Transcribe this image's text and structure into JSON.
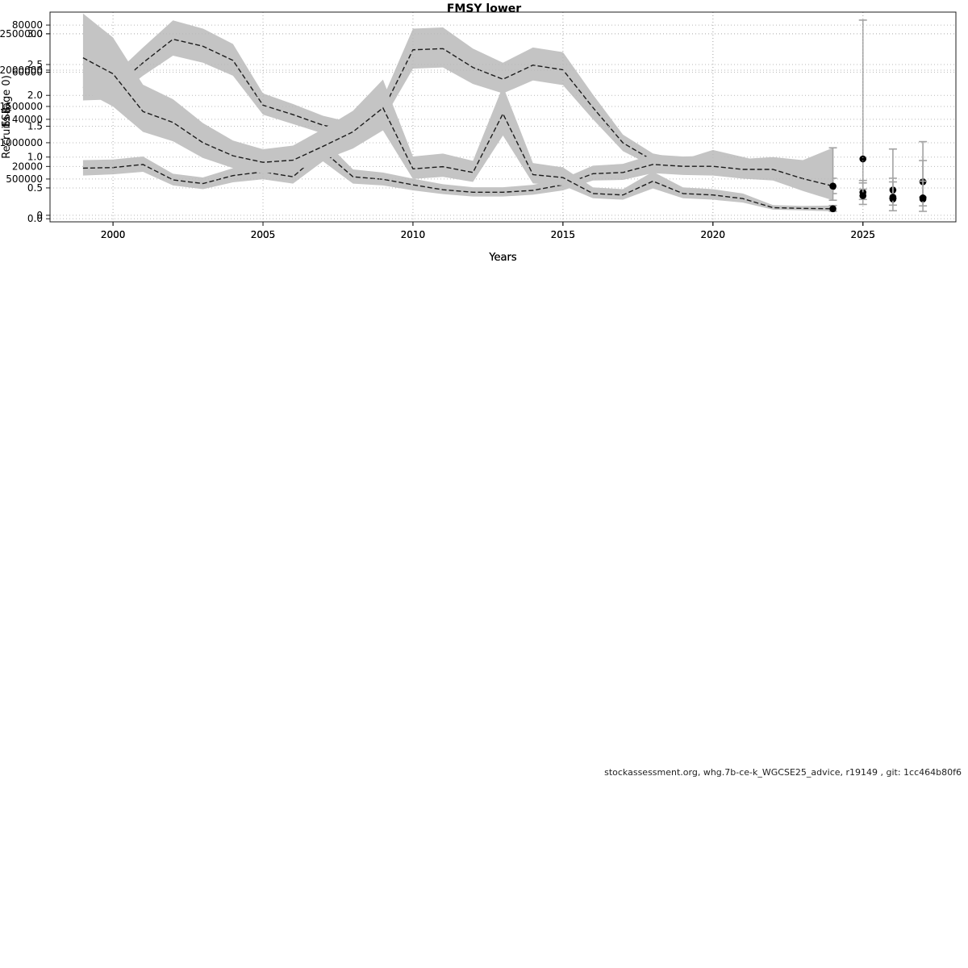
{
  "watermark": "stockassessment.org, whg.7b-ce-k_WGCSE25_advice, r19149 , git: 1cc464b80f6",
  "colors": {
    "band": "#c4c4c4",
    "line": "#1c1c1c",
    "grid": "#b8b8b8",
    "error": "#a3a3a3",
    "point": "#000000",
    "text": "#000000"
  },
  "chart_data": [
    {
      "type": "line",
      "title": "FMSY lower",
      "xlabel": "Years",
      "ylabel": "SSB",
      "xlim": [
        1997.9,
        2028.1
      ],
      "ylim": [
        -3500,
        85500
      ],
      "xticks": [
        2000,
        2005,
        2010,
        2015,
        2020,
        2025
      ],
      "xtick_labels": [
        "2000",
        "2005",
        "2010",
        "2015",
        "2020",
        "2025"
      ],
      "yticks": [
        20000,
        40000,
        60000,
        80000
      ],
      "ytick_labels": [
        "20000",
        "40000",
        "60000",
        "80000"
      ],
      "grid": true,
      "x": [
        1999,
        2000,
        2001,
        2002,
        2003,
        2004,
        2005,
        2006,
        2007,
        2008,
        2009,
        2010,
        2011,
        2012,
        2013,
        2014,
        2015,
        2016,
        2017,
        2018,
        2019,
        2020,
        2021,
        2022,
        2023,
        2024
      ],
      "values": [
        53500,
        53000,
        64000,
        74000,
        71000,
        65000,
        46000,
        42000,
        37500,
        35000,
        44000,
        69500,
        70000,
        62000,
        57000,
        63000,
        61000,
        45000,
        30000,
        22500,
        20500,
        24000,
        21000,
        18500,
        16000,
        11500
      ],
      "band": {
        "lower": [
          48000,
          48500,
          58500,
          67000,
          64000,
          58500,
          42000,
          38000,
          34000,
          31500,
          39500,
          61500,
          62000,
          55000,
          51000,
          56500,
          54500,
          40000,
          26500,
          20000,
          18000,
          21000,
          18500,
          16000,
          13500,
          8500
        ],
        "upper": [
          60000,
          58500,
          70500,
          82000,
          78500,
          72000,
          51000,
          46500,
          41500,
          38500,
          49000,
          78500,
          79000,
          70000,
          64000,
          70500,
          68500,
          50500,
          33500,
          25500,
          23000,
          27000,
          24000,
          21000,
          18500,
          15000
        ]
      },
      "forecast": {
        "x": [
          2024,
          2025,
          2026,
          2027
        ],
        "values": [
          11500,
          9000,
          10000,
          13500
        ],
        "lower": [
          8500,
          6000,
          6500,
          7000
        ],
        "upper": [
          15000,
          13000,
          15000,
          22500
        ]
      }
    },
    {
      "type": "line",
      "title": "",
      "xlabel": "Years",
      "ylabel": "F₂₋₅",
      "xlim": [
        1997.9,
        2028.1
      ],
      "ylim": [
        -0.05,
        3.35
      ],
      "xticks": [
        2000,
        2005,
        2010,
        2015,
        2020,
        2025
      ],
      "xtick_labels": [
        "2000",
        "2005",
        "2010",
        "2015",
        "2020",
        "2025"
      ],
      "yticks": [
        0,
        0.5,
        1.0,
        1.5,
        2.0,
        2.5,
        3.0
      ],
      "ytick_labels": [
        "0.0",
        "0.5",
        "1.0",
        "1.5",
        "2.0",
        "2.5",
        "3.0"
      ],
      "grid": true,
      "x": [
        1999,
        2000,
        2001,
        2002,
        2003,
        2004,
        2005,
        2006,
        2007,
        2008,
        2009,
        2010,
        2011,
        2012,
        2013,
        2014,
        2015,
        2016,
        2017,
        2018,
        2019,
        2020,
        2021,
        2022,
        2023,
        2024
      ],
      "values": [
        0.82,
        0.83,
        0.88,
        0.63,
        0.57,
        0.7,
        0.76,
        0.68,
        1.1,
        0.68,
        0.64,
        0.55,
        0.47,
        0.43,
        0.43,
        0.46,
        0.55,
        0.73,
        0.75,
        0.88,
        0.85,
        0.85,
        0.8,
        0.8,
        0.65,
        0.53
      ],
      "band": {
        "lower": [
          0.7,
          0.72,
          0.76,
          0.54,
          0.48,
          0.59,
          0.64,
          0.57,
          0.93,
          0.57,
          0.54,
          0.46,
          0.4,
          0.36,
          0.36,
          0.39,
          0.46,
          0.62,
          0.63,
          0.74,
          0.71,
          0.7,
          0.65,
          0.62,
          0.45,
          0.3
        ],
        "upper": [
          0.95,
          0.96,
          1.01,
          0.73,
          0.67,
          0.82,
          0.88,
          0.8,
          1.29,
          0.8,
          0.75,
          0.65,
          0.56,
          0.51,
          0.51,
          0.55,
          0.65,
          0.86,
          0.89,
          1.04,
          1.01,
          1.02,
          0.97,
          1.0,
          0.95,
          1.15
        ]
      },
      "forecast": {
        "x": [
          2024,
          2025,
          2026,
          2027
        ],
        "values": [
          0.53,
          0.97,
          0.32,
          0.32
        ],
        "lower": [
          0.3,
          0.48,
          0.13,
          0.12
        ],
        "upper": [
          1.15,
          3.22,
          1.13,
          1.25
        ]
      }
    },
    {
      "type": "line",
      "title": "",
      "xlabel": "Years",
      "ylabel": "Recruits (age 0)",
      "xlim": [
        1997.9,
        2028.1
      ],
      "ylim": [
        -90000,
        2800000
      ],
      "xticks": [
        2000,
        2005,
        2010,
        2015,
        2020,
        2025
      ],
      "xtick_labels": [
        "2000",
        "2005",
        "2010",
        "2015",
        "2020",
        "2025"
      ],
      "yticks": [
        0,
        500000,
        1000000,
        1500000,
        2000000,
        2500000
      ],
      "ytick_labels": [
        "0",
        "500000",
        "1000000",
        "1500000",
        "2000000",
        "2500000"
      ],
      "grid": true,
      "x": [
        1999,
        2000,
        2001,
        2002,
        2003,
        2004,
        2005,
        2006,
        2007,
        2008,
        2009,
        2010,
        2011,
        2012,
        2013,
        2014,
        2015,
        2016,
        2017,
        2018,
        2019,
        2020,
        2021,
        2022,
        2023,
        2024
      ],
      "values": [
        2170000,
        1950000,
        1430000,
        1280000,
        1000000,
        820000,
        730000,
        760000,
        950000,
        1150000,
        1480000,
        640000,
        670000,
        590000,
        1400000,
        560000,
        520000,
        300000,
        280000,
        470000,
        300000,
        280000,
        230000,
        105000,
        95000,
        90000
      ],
      "band": {
        "lower": [
          1720000,
          1500000,
          1150000,
          1020000,
          790000,
          650000,
          580000,
          600000,
          760000,
          920000,
          1170000,
          500000,
          530000,
          460000,
          1100000,
          440000,
          410000,
          235000,
          215000,
          370000,
          235000,
          215000,
          175000,
          78000,
          68000,
          55000
        ],
        "upper": [
          2780000,
          2450000,
          1800000,
          1600000,
          1270000,
          1030000,
          910000,
          960000,
          1190000,
          1440000,
          1870000,
          810000,
          850000,
          750000,
          1780000,
          720000,
          660000,
          385000,
          360000,
          600000,
          385000,
          360000,
          300000,
          140000,
          130000,
          135000
        ]
      },
      "forecast": {
        "x": [
          2024,
          2025,
          2026,
          2027
        ],
        "values": [
          90000,
          270000,
          250000,
          240000
        ],
        "lower": [
          55000,
          150000,
          140000,
          130000
        ],
        "upper": [
          135000,
          480000,
          460000,
          470000
        ]
      }
    }
  ]
}
